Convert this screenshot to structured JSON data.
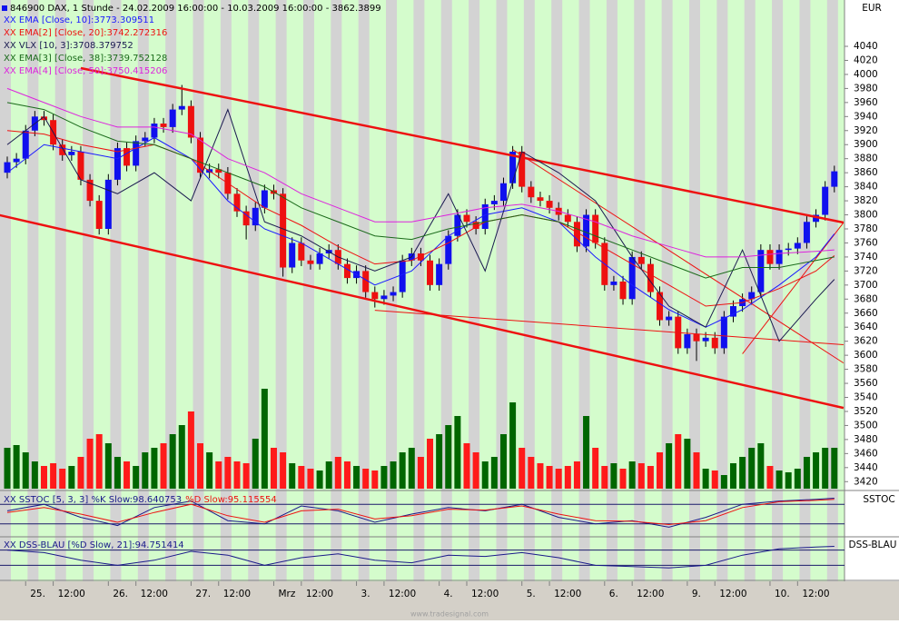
{
  "watermark": "www.tradesignal.com",
  "chart_data": [
    {
      "type": "candlestick",
      "title": "846900 DAX, 1 Stunde - 24.02.2009 16:00:00 - 10.03.2009 16:00:00 - 3862.3899",
      "currency": "EUR",
      "ylim": [
        3410,
        4106
      ],
      "yticks": [
        3420,
        3440,
        3460,
        3480,
        3500,
        3520,
        3540,
        3560,
        3580,
        3600,
        3620,
        3640,
        3660,
        3680,
        3700,
        3720,
        3740,
        3760,
        3780,
        3800,
        3820,
        3840,
        3860,
        3880,
        3900,
        3920,
        3940,
        3960,
        3980,
        4000,
        4020,
        4040
      ],
      "xticks": [
        {
          "value": 2,
          "label": "25."
        },
        {
          "value": 5,
          "label": "12:00"
        },
        {
          "value": 11,
          "label": "26."
        },
        {
          "value": 14,
          "label": "12:00"
        },
        {
          "value": 20,
          "label": "27."
        },
        {
          "value": 23,
          "label": "12:00"
        },
        {
          "value": 29,
          "label": "Mrz"
        },
        {
          "value": 32,
          "label": "12:00"
        },
        {
          "value": 38,
          "label": "3."
        },
        {
          "value": 41,
          "label": "12:00"
        },
        {
          "value": 47,
          "label": "4."
        },
        {
          "value": 50,
          "label": "12:00"
        },
        {
          "value": 56,
          "label": "5."
        },
        {
          "value": 59,
          "label": "12:00"
        },
        {
          "value": 65,
          "label": "6."
        },
        {
          "value": 68,
          "label": "12:00"
        },
        {
          "value": 74,
          "label": "9."
        },
        {
          "value": 77,
          "label": "12:00"
        },
        {
          "value": 83,
          "label": "10."
        },
        {
          "value": 86,
          "label": "12:00"
        }
      ],
      "up_color": "#1010ee",
      "down_color": "#ee1010",
      "candles": [
        [
          3860,
          3883,
          3852,
          3875
        ],
        [
          3875,
          3888,
          3867,
          3880
        ],
        [
          3880,
          3928,
          3872,
          3920
        ],
        [
          3920,
          3948,
          3912,
          3940
        ],
        [
          3940,
          3948,
          3927,
          3935
        ],
        [
          3935,
          3943,
          3892,
          3900
        ],
        [
          3900,
          3908,
          3877,
          3885
        ],
        [
          3885,
          3898,
          3877,
          3890
        ],
        [
          3890,
          3898,
          3842,
          3850
        ],
        [
          3850,
          3858,
          3812,
          3820
        ],
        [
          3820,
          3828,
          3772,
          3780
        ],
        [
          3780,
          3858,
          3772,
          3850
        ],
        [
          3850,
          3903,
          3842,
          3895
        ],
        [
          3895,
          3903,
          3862,
          3870
        ],
        [
          3870,
          3913,
          3862,
          3905
        ],
        [
          3905,
          3918,
          3897,
          3910
        ],
        [
          3910,
          3938,
          3902,
          3930
        ],
        [
          3930,
          3938,
          3917,
          3925
        ],
        [
          3925,
          3958,
          3917,
          3950
        ],
        [
          3950,
          3985,
          3942,
          3955
        ],
        [
          3955,
          3963,
          3902,
          3910
        ],
        [
          3910,
          3918,
          3852,
          3860
        ],
        [
          3860,
          3873,
          3852,
          3865
        ],
        [
          3865,
          3873,
          3852,
          3860
        ],
        [
          3860,
          3868,
          3822,
          3830
        ],
        [
          3830,
          3838,
          3797,
          3805
        ],
        [
          3805,
          3813,
          3765,
          3785
        ],
        [
          3785,
          3818,
          3777,
          3810
        ],
        [
          3810,
          3843,
          3802,
          3835
        ],
        [
          3835,
          3843,
          3822,
          3830
        ],
        [
          3830,
          3838,
          3712,
          3725
        ],
        [
          3725,
          3768,
          3717,
          3760
        ],
        [
          3760,
          3768,
          3727,
          3735
        ],
        [
          3735,
          3743,
          3722,
          3730
        ],
        [
          3730,
          3753,
          3722,
          3745
        ],
        [
          3745,
          3758,
          3737,
          3750
        ],
        [
          3750,
          3758,
          3722,
          3730
        ],
        [
          3730,
          3738,
          3702,
          3710
        ],
        [
          3710,
          3728,
          3702,
          3720
        ],
        [
          3720,
          3728,
          3682,
          3690
        ],
        [
          3690,
          3698,
          3668,
          3680
        ],
        [
          3680,
          3693,
          3672,
          3685
        ],
        [
          3685,
          3698,
          3677,
          3690
        ],
        [
          3690,
          3743,
          3682,
          3735
        ],
        [
          3735,
          3753,
          3727,
          3745
        ],
        [
          3745,
          3753,
          3727,
          3735
        ],
        [
          3735,
          3743,
          3692,
          3700
        ],
        [
          3700,
          3738,
          3692,
          3730
        ],
        [
          3730,
          3778,
          3722,
          3770
        ],
        [
          3770,
          3808,
          3762,
          3800
        ],
        [
          3800,
          3808,
          3782,
          3790
        ],
        [
          3790,
          3798,
          3772,
          3780
        ],
        [
          3780,
          3823,
          3772,
          3815
        ],
        [
          3815,
          3828,
          3807,
          3820
        ],
        [
          3820,
          3853,
          3812,
          3845
        ],
        [
          3845,
          3898,
          3837,
          3890
        ],
        [
          3890,
          3898,
          3832,
          3840
        ],
        [
          3840,
          3848,
          3817,
          3825
        ],
        [
          3825,
          3833,
          3812,
          3820
        ],
        [
          3820,
          3828,
          3802,
          3810
        ],
        [
          3810,
          3818,
          3792,
          3800
        ],
        [
          3800,
          3808,
          3782,
          3790
        ],
        [
          3790,
          3798,
          3747,
          3755
        ],
        [
          3755,
          3808,
          3747,
          3800
        ],
        [
          3800,
          3808,
          3752,
          3760
        ],
        [
          3760,
          3768,
          3692,
          3700
        ],
        [
          3700,
          3713,
          3692,
          3705
        ],
        [
          3705,
          3713,
          3672,
          3680
        ],
        [
          3680,
          3748,
          3672,
          3740
        ],
        [
          3740,
          3748,
          3722,
          3730
        ],
        [
          3730,
          3738,
          3682,
          3690
        ],
        [
          3690,
          3698,
          3642,
          3650
        ],
        [
          3650,
          3663,
          3642,
          3655
        ],
        [
          3655,
          3663,
          3602,
          3610
        ],
        [
          3610,
          3638,
          3602,
          3630
        ],
        [
          3630,
          3638,
          3592,
          3620
        ],
        [
          3620,
          3633,
          3612,
          3625
        ],
        [
          3625,
          3633,
          3602,
          3610
        ],
        [
          3610,
          3663,
          3602,
          3655
        ],
        [
          3655,
          3678,
          3647,
          3670
        ],
        [
          3670,
          3688,
          3662,
          3680
        ],
        [
          3680,
          3698,
          3672,
          3690
        ],
        [
          3690,
          3758,
          3682,
          3750
        ],
        [
          3750,
          3758,
          3722,
          3730
        ],
        [
          3730,
          3758,
          3722,
          3750
        ],
        [
          3750,
          3760,
          3742,
          3752
        ],
        [
          3752,
          3768,
          3744,
          3760
        ],
        [
          3760,
          3798,
          3752,
          3790
        ],
        [
          3790,
          3808,
          3782,
          3800
        ],
        [
          3800,
          3848,
          3792,
          3840
        ],
        [
          3840,
          3870,
          3832,
          3862
        ]
      ],
      "volume": {
        "ylim": [
          0,
          120
        ],
        "up_color": "#006600",
        "down_color": "#ff1a1a",
        "values": [
          45,
          48,
          40,
          30,
          25,
          28,
          22,
          25,
          35,
          55,
          60,
          50,
          35,
          30,
          25,
          40,
          45,
          50,
          60,
          70,
          85,
          50,
          40,
          30,
          35,
          30,
          28,
          55,
          110,
          45,
          40,
          28,
          25,
          22,
          20,
          30,
          35,
          30,
          25,
          22,
          20,
          25,
          30,
          40,
          45,
          35,
          55,
          60,
          70,
          80,
          50,
          40,
          30,
          35,
          60,
          95,
          45,
          35,
          28,
          25,
          22,
          25,
          30,
          80,
          45,
          25,
          28,
          22,
          30,
          28,
          25,
          40,
          50,
          60,
          55,
          40,
          22,
          20,
          15,
          28,
          35,
          45,
          50,
          25,
          20,
          18,
          22,
          35,
          40,
          45,
          45
        ]
      },
      "indicator_x": [
        0,
        4,
        8,
        12,
        16,
        20,
        24,
        28,
        32,
        36,
        40,
        44,
        48,
        52,
        56,
        60,
        64,
        68,
        72,
        76,
        80,
        84,
        88,
        90
      ],
      "series": [
        {
          "name": "XX EMA [Close, 10]:3773.309511",
          "color": "#1a1aff",
          "values": [
            3860,
            3900,
            3890,
            3880,
            3910,
            3880,
            3820,
            3780,
            3760,
            3730,
            3700,
            3720,
            3770,
            3800,
            3810,
            3790,
            3740,
            3700,
            3665,
            3640,
            3665,
            3700,
            3740,
            3773
          ]
        },
        {
          "name": "XX EMA[2] [Close, 20]:3742.272316",
          "color": "#ee1111",
          "values": [
            3920,
            3915,
            3900,
            3890,
            3900,
            3880,
            3845,
            3810,
            3785,
            3755,
            3730,
            3735,
            3760,
            3790,
            3800,
            3790,
            3760,
            3730,
            3700,
            3670,
            3675,
            3695,
            3720,
            3742
          ]
        },
        {
          "name": "XX VLX [10, 3]:3708.379752",
          "color": "#1a1a50",
          "values": [
            3900,
            3940,
            3850,
            3830,
            3860,
            3820,
            3950,
            3790,
            3770,
            3740,
            3720,
            3740,
            3830,
            3720,
            3890,
            3860,
            3820,
            3740,
            3670,
            3640,
            3750,
            3620,
            3680,
            3708
          ]
        },
        {
          "name": "XX EMA[3] [Close, 38]:3739.752128",
          "color": "#1a6a1a",
          "values": [
            3960,
            3950,
            3925,
            3905,
            3900,
            3880,
            3860,
            3840,
            3810,
            3790,
            3770,
            3765,
            3780,
            3790,
            3800,
            3790,
            3770,
            3750,
            3730,
            3710,
            3725,
            3725,
            3735,
            3740
          ]
        },
        {
          "name": "XX EMA[4] [Close, 50]:3750.415206",
          "color": "#dd22dd",
          "values": [
            3980,
            3960,
            3940,
            3925,
            3925,
            3915,
            3880,
            3860,
            3830,
            3810,
            3790,
            3790,
            3800,
            3810,
            3815,
            3805,
            3790,
            3770,
            3755,
            3740,
            3740,
            3745,
            3748,
            3750
          ]
        }
      ],
      "trendlines": [
        {
          "x": [
            8,
            91
          ],
          "y": [
            4009,
            3789
          ],
          "color": "#ee1111",
          "width": 2.5
        },
        {
          "x": [
            -1,
            91
          ],
          "y": [
            3800,
            3525
          ],
          "color": "#ee1111",
          "width": 2.5
        },
        {
          "x": [
            40,
            91
          ],
          "y": [
            3664,
            3615
          ],
          "color": "#ee1111",
          "width": 1
        },
        {
          "x": [
            55,
            91
          ],
          "y": [
            3893,
            3589
          ],
          "color": "#ee1111",
          "width": 1
        },
        {
          "x": [
            80,
            91
          ],
          "y": [
            3602,
            3789
          ],
          "color": "#ee1111",
          "width": 1
        }
      ]
    },
    {
      "type": "oscillator",
      "label": "SSTOC",
      "ylim": [
        0,
        100
      ],
      "levels": [
        80,
        20
      ],
      "series": [
        {
          "name": "XX SSTOC [5, 3, 3] %K Slow:98.640753",
          "color": "#1a1a8a",
          "values": [
            60,
            80,
            40,
            15,
            70,
            90,
            30,
            20,
            75,
            60,
            25,
            50,
            70,
            60,
            80,
            40,
            20,
            30,
            10,
            40,
            80,
            90,
            95,
            98.6
          ]
        },
        {
          "name": "%D Slow:95.115554",
          "color": "#ee1111",
          "values": [
            55,
            70,
            50,
            25,
            55,
            80,
            45,
            25,
            60,
            65,
            35,
            45,
            65,
            62,
            75,
            50,
            30,
            28,
            18,
            30,
            70,
            88,
            92,
            95.1
          ]
        }
      ]
    },
    {
      "type": "oscillator",
      "label": "DSS-BLAU",
      "ylim": [
        0,
        100
      ],
      "levels": [
        80,
        20
      ],
      "series": [
        {
          "name": "XX DSS-BLAU [%D Slow, 21]:94.751414",
          "color": "#1a1a8a",
          "values": [
            80,
            70,
            40,
            20,
            40,
            75,
            60,
            20,
            50,
            65,
            40,
            30,
            60,
            55,
            70,
            50,
            20,
            15,
            10,
            20,
            60,
            85,
            92,
            94.75
          ]
        }
      ]
    }
  ]
}
